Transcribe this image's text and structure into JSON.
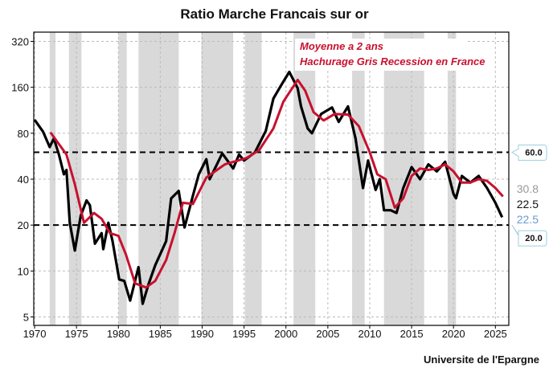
{
  "chart_data": {
    "type": "line",
    "title": "Ratio Marche Francais sur or",
    "source": "Universite de l'Epargne",
    "yscale": "log2",
    "ylim": [
      4.4,
      368
    ],
    "xlim": [
      1969.9,
      2026.6
    ],
    "yticks": [
      5,
      10,
      20,
      40,
      80,
      160,
      320
    ],
    "xticks": [
      1970,
      1975,
      1980,
      1985,
      1990,
      1995,
      2000,
      2005,
      2010,
      2015,
      2020,
      2025
    ],
    "grid": true,
    "annotations": [
      "Moyenne a 2 ans",
      "Hachurage Gris Recession en France"
    ],
    "hlines": [
      {
        "value": 60,
        "label": "60.0"
      },
      {
        "value": 20,
        "label": "20.0"
      }
    ],
    "last_values": [
      {
        "label": "30.8",
        "color": "#999999"
      },
      {
        "label": "22.5",
        "color": "#111111"
      },
      {
        "label": "22.5",
        "color": "#6a9bd1"
      }
    ],
    "recessions": [
      [
        1971.8,
        1972.5
      ],
      [
        1974.1,
        1975.6
      ],
      [
        1980.0,
        1981.0
      ],
      [
        1982.4,
        1987.2
      ],
      [
        1989.9,
        1993.7
      ],
      [
        1995.1,
        1997.1
      ],
      [
        2000.9,
        2003.5
      ],
      [
        2007.9,
        2009.4
      ],
      [
        2011.7,
        2016.5
      ],
      [
        2019.3,
        2020.3
      ]
    ],
    "series": [
      {
        "name": "Ratio",
        "color": "#000000",
        "points": [
          [
            1970.0,
            98
          ],
          [
            1971.0,
            82
          ],
          [
            1971.8,
            65
          ],
          [
            1972.3,
            74
          ],
          [
            1972.9,
            58
          ],
          [
            1973.5,
            43
          ],
          [
            1973.8,
            46
          ],
          [
            1974.2,
            20.7
          ],
          [
            1974.8,
            13.6
          ],
          [
            1975.5,
            23
          ],
          [
            1976.2,
            29
          ],
          [
            1976.6,
            27
          ],
          [
            1977.2,
            15.1
          ],
          [
            1978.0,
            17.7
          ],
          [
            1978.2,
            13.9
          ],
          [
            1978.8,
            20.7
          ],
          [
            1979.3,
            15.7
          ],
          [
            1980.1,
            8.8
          ],
          [
            1980.7,
            8.6
          ],
          [
            1981.4,
            6.4
          ],
          [
            1982.4,
            10.6
          ],
          [
            1982.9,
            6.1
          ],
          [
            1983.6,
            8.2
          ],
          [
            1984.4,
            10.9
          ],
          [
            1985.7,
            15.7
          ],
          [
            1986.3,
            29.9
          ],
          [
            1987.2,
            33.5
          ],
          [
            1987.9,
            19.3
          ],
          [
            1988.9,
            31.2
          ],
          [
            1989.6,
            43
          ],
          [
            1990.5,
            54
          ],
          [
            1990.9,
            40
          ],
          [
            1992.4,
            59
          ],
          [
            1993.7,
            47
          ],
          [
            1994.4,
            58
          ],
          [
            1995.0,
            53
          ],
          [
            1996.3,
            60
          ],
          [
            1997.6,
            83
          ],
          [
            1998.5,
            135
          ],
          [
            1999.4,
            164
          ],
          [
            2000.4,
            202
          ],
          [
            2001.4,
            158
          ],
          [
            2001.8,
            120
          ],
          [
            2002.6,
            86
          ],
          [
            2003.1,
            80
          ],
          [
            2004.2,
            107
          ],
          [
            2005.5,
            118
          ],
          [
            2006.3,
            95
          ],
          [
            2007.4,
            120
          ],
          [
            2008.3,
            74
          ],
          [
            2009.2,
            35
          ],
          [
            2009.8,
            53
          ],
          [
            2010.7,
            34
          ],
          [
            2011.2,
            40
          ],
          [
            2011.7,
            25
          ],
          [
            2012.5,
            25
          ],
          [
            2013.2,
            24
          ],
          [
            2014.0,
            35
          ],
          [
            2015.0,
            48
          ],
          [
            2016.0,
            40
          ],
          [
            2017.0,
            50
          ],
          [
            2018.0,
            45
          ],
          [
            2019.0,
            52
          ],
          [
            2020.0,
            32
          ],
          [
            2020.3,
            30
          ],
          [
            2021.0,
            42
          ],
          [
            2022.0,
            38
          ],
          [
            2023.0,
            42
          ],
          [
            2024.0,
            35
          ],
          [
            2025.0,
            28
          ],
          [
            2025.8,
            22.5
          ]
        ]
      },
      {
        "name": "Moyenne a 2 ans",
        "color": "#c8102e",
        "points": [
          [
            1971.9,
            81
          ],
          [
            1973.8,
            58
          ],
          [
            1974.8,
            37
          ],
          [
            1975.9,
            20.7
          ],
          [
            1977.1,
            24
          ],
          [
            1978.0,
            22
          ],
          [
            1979.0,
            17.7
          ],
          [
            1980.0,
            17
          ],
          [
            1980.9,
            12.8
          ],
          [
            1982.0,
            8.3
          ],
          [
            1983.3,
            7.8
          ],
          [
            1984.4,
            8.6
          ],
          [
            1985.7,
            11.8
          ],
          [
            1986.7,
            17.7
          ],
          [
            1987.7,
            28
          ],
          [
            1988.9,
            27.5
          ],
          [
            1990.5,
            41
          ],
          [
            1992.7,
            50
          ],
          [
            1995.3,
            55
          ],
          [
            1996.8,
            62
          ],
          [
            1998.5,
            86
          ],
          [
            1999.7,
            129
          ],
          [
            2001.4,
            179
          ],
          [
            2002.3,
            152
          ],
          [
            2003.3,
            110
          ],
          [
            2004.5,
            97
          ],
          [
            2005.8,
            107
          ],
          [
            2007.4,
            106
          ],
          [
            2008.7,
            89
          ],
          [
            2010.0,
            60
          ],
          [
            2010.9,
            43
          ],
          [
            2011.9,
            40
          ],
          [
            2013.0,
            26
          ],
          [
            2014.0,
            30
          ],
          [
            2015.0,
            42
          ],
          [
            2016.0,
            47
          ],
          [
            2017.0,
            46
          ],
          [
            2018.0,
            47
          ],
          [
            2019.0,
            50
          ],
          [
            2020.0,
            45
          ],
          [
            2021.0,
            38
          ],
          [
            2022.0,
            38
          ],
          [
            2023.0,
            40
          ],
          [
            2024.0,
            39
          ],
          [
            2025.0,
            35
          ],
          [
            2025.9,
            30.8
          ]
        ]
      }
    ]
  }
}
